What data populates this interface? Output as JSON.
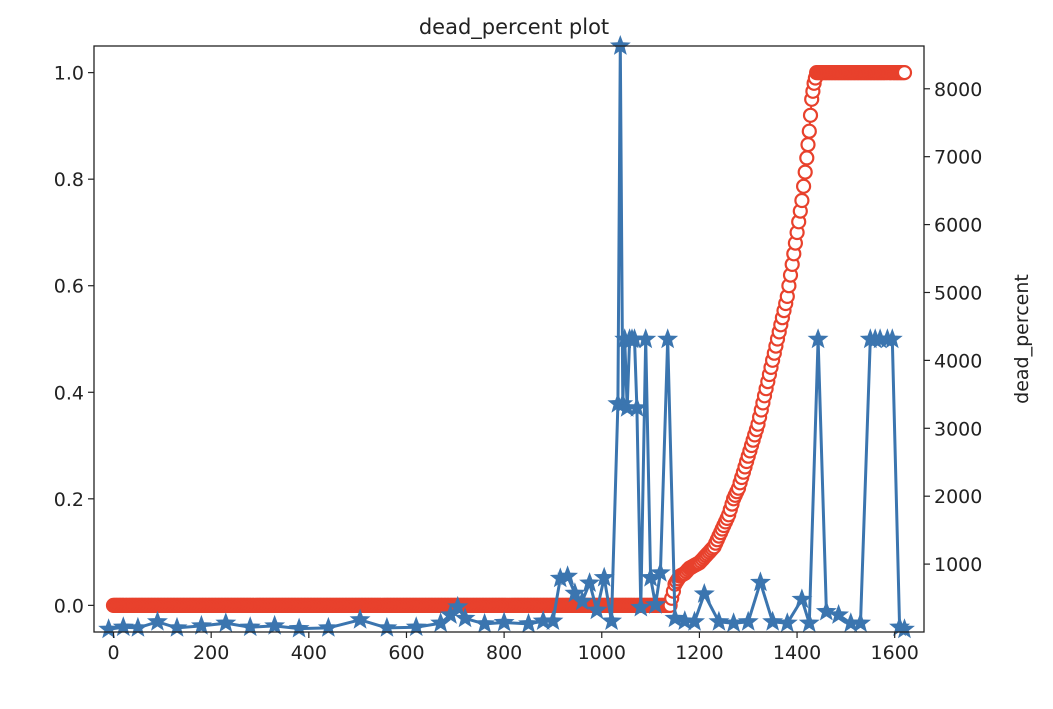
{
  "chart_data": {
    "type": "line",
    "title": "dead_percent plot",
    "xlabel": "",
    "ylabel": "",
    "y2label": "dead_percent",
    "xlim": [
      -40,
      1660
    ],
    "ylim": [
      -0.05,
      1.05
    ],
    "y2lim": [
      0,
      8630
    ],
    "x_ticks": [
      0,
      200,
      400,
      600,
      800,
      1000,
      1200,
      1400,
      1600
    ],
    "y_ticks": [
      0.0,
      0.2,
      0.4,
      0.6,
      0.8,
      1.0
    ],
    "y2_ticks": [
      1000,
      2000,
      3000,
      4000,
      5000,
      6000,
      7000,
      8000
    ],
    "grid": false,
    "series": [
      {
        "axis": "left",
        "color": "#e8412c",
        "marker": "circle-open",
        "points": [
          [
            0,
            0.0
          ],
          [
            200,
            0.0
          ],
          [
            400,
            0.0
          ],
          [
            600,
            0.0
          ],
          [
            800,
            0.0
          ],
          [
            1000,
            0.0
          ],
          [
            1100,
            0.0
          ],
          [
            1140,
            0.0
          ],
          [
            1150,
            0.04
          ],
          [
            1160,
            0.055
          ],
          [
            1170,
            0.06
          ],
          [
            1180,
            0.07
          ],
          [
            1190,
            0.075
          ],
          [
            1200,
            0.08
          ],
          [
            1210,
            0.09
          ],
          [
            1220,
            0.1
          ],
          [
            1230,
            0.11
          ],
          [
            1240,
            0.13
          ],
          [
            1250,
            0.15
          ],
          [
            1260,
            0.17
          ],
          [
            1270,
            0.2
          ],
          [
            1280,
            0.22
          ],
          [
            1290,
            0.25
          ],
          [
            1300,
            0.28
          ],
          [
            1310,
            0.31
          ],
          [
            1320,
            0.34
          ],
          [
            1330,
            0.38
          ],
          [
            1340,
            0.42
          ],
          [
            1350,
            0.46
          ],
          [
            1360,
            0.5
          ],
          [
            1370,
            0.54
          ],
          [
            1380,
            0.58
          ],
          [
            1390,
            0.64
          ],
          [
            1400,
            0.7
          ],
          [
            1410,
            0.76
          ],
          [
            1420,
            0.84
          ],
          [
            1425,
            0.89
          ],
          [
            1430,
            0.95
          ],
          [
            1435,
            0.98
          ],
          [
            1440,
            1.0
          ],
          [
            1500,
            1.0
          ],
          [
            1550,
            1.0
          ],
          [
            1600,
            1.0
          ],
          [
            1620,
            1.0
          ]
        ]
      },
      {
        "axis": "right",
        "color": "#3b75af",
        "marker": "star",
        "points": [
          [
            -10,
            40
          ],
          [
            20,
            70
          ],
          [
            50,
            60
          ],
          [
            90,
            150
          ],
          [
            130,
            60
          ],
          [
            180,
            90
          ],
          [
            230,
            130
          ],
          [
            280,
            70
          ],
          [
            330,
            90
          ],
          [
            380,
            50
          ],
          [
            440,
            60
          ],
          [
            505,
            180
          ],
          [
            560,
            60
          ],
          [
            620,
            70
          ],
          [
            670,
            130
          ],
          [
            690,
            250
          ],
          [
            705,
            370
          ],
          [
            720,
            200
          ],
          [
            760,
            120
          ],
          [
            800,
            140
          ],
          [
            850,
            120
          ],
          [
            880,
            160
          ],
          [
            900,
            160
          ],
          [
            915,
            790
          ],
          [
            930,
            820
          ],
          [
            945,
            570
          ],
          [
            960,
            450
          ],
          [
            975,
            720
          ],
          [
            990,
            320
          ],
          [
            1005,
            800
          ],
          [
            1020,
            160
          ],
          [
            1033,
            3360
          ],
          [
            1038,
            8630
          ],
          [
            1043,
            3360
          ],
          [
            1047,
            4310
          ],
          [
            1052,
            3300
          ],
          [
            1057,
            4310
          ],
          [
            1062,
            4310
          ],
          [
            1067,
            4310
          ],
          [
            1072,
            3300
          ],
          [
            1080,
            360
          ],
          [
            1090,
            4310
          ],
          [
            1100,
            800
          ],
          [
            1110,
            400
          ],
          [
            1120,
            870
          ],
          [
            1135,
            4310
          ],
          [
            1150,
            200
          ],
          [
            1170,
            160
          ],
          [
            1190,
            150
          ],
          [
            1210,
            560
          ],
          [
            1240,
            150
          ],
          [
            1270,
            130
          ],
          [
            1300,
            150
          ],
          [
            1325,
            730
          ],
          [
            1350,
            150
          ],
          [
            1380,
            130
          ],
          [
            1410,
            480
          ],
          [
            1425,
            130
          ],
          [
            1443,
            4310
          ],
          [
            1460,
            300
          ],
          [
            1485,
            250
          ],
          [
            1510,
            130
          ],
          [
            1530,
            130
          ],
          [
            1550,
            4310
          ],
          [
            1560,
            4310
          ],
          [
            1570,
            4310
          ],
          [
            1585,
            4310
          ],
          [
            1595,
            4310
          ],
          [
            1610,
            70
          ],
          [
            1620,
            40
          ]
        ]
      }
    ]
  }
}
